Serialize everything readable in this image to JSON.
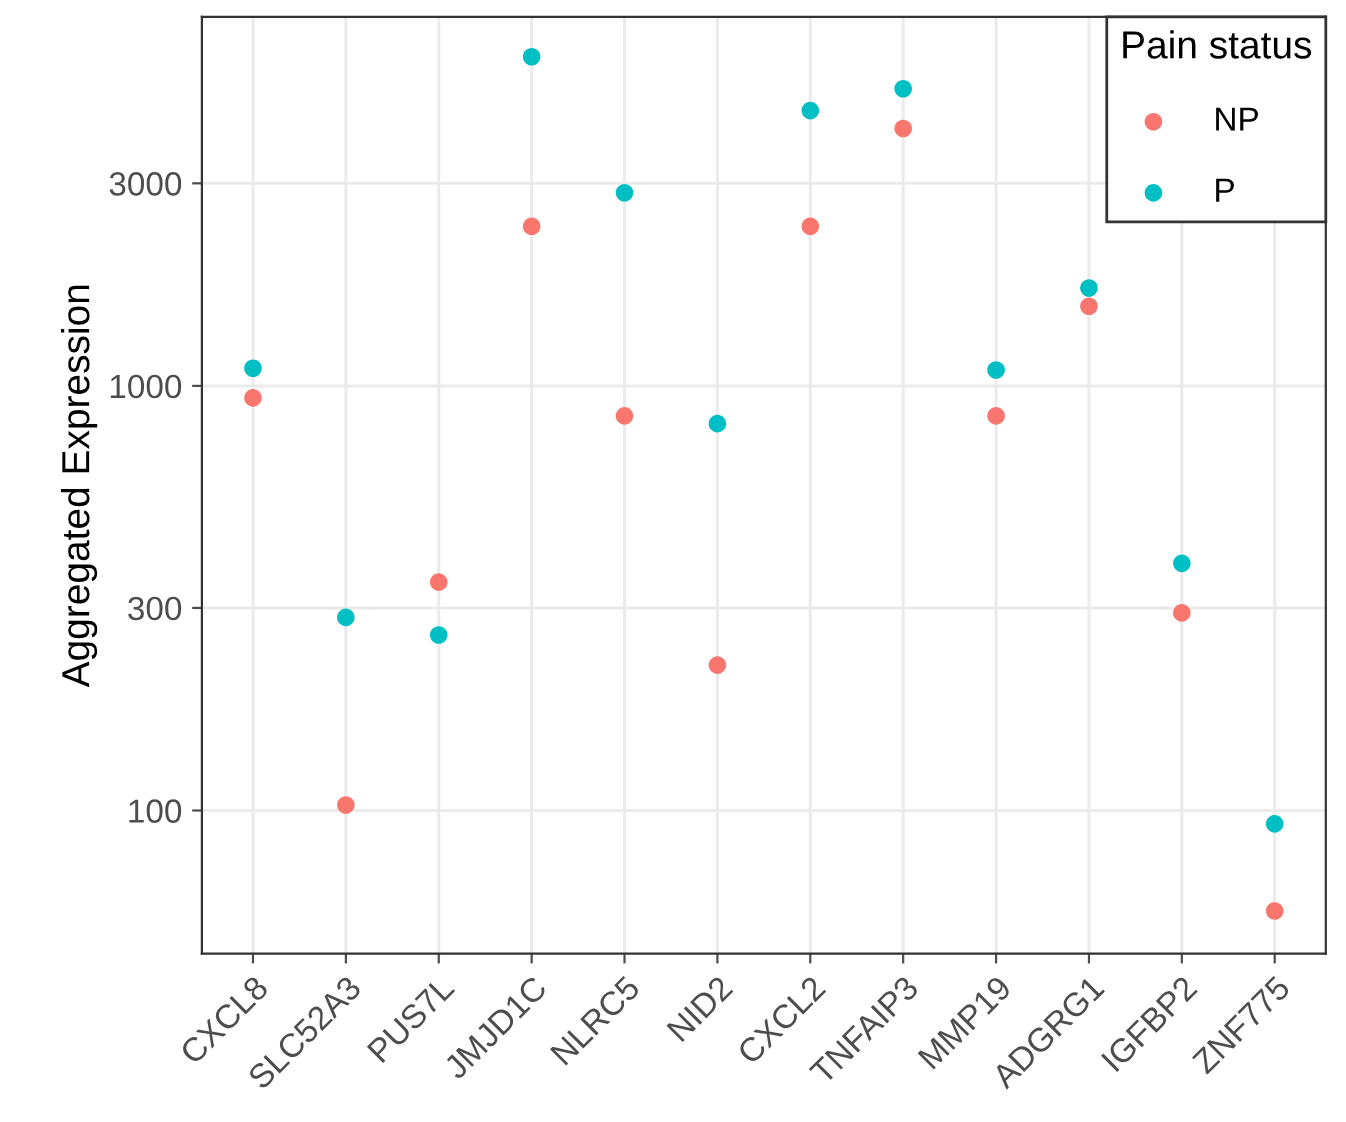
{
  "chart_data": {
    "type": "scatter",
    "ylabel": "Aggregated Expression",
    "legend_title": "Pain status",
    "categories": [
      "CXCL8",
      "SLC52A3",
      "PUS7L",
      "JMJD1C",
      "NLRC5",
      "NID2",
      "CXCL2",
      "TNFAIP3",
      "MMP19",
      "ADGRG1",
      "IGFBP2",
      "ZNF775"
    ],
    "series": [
      {
        "name": "NP",
        "color": "#f8766d",
        "values": [
          937,
          103,
          345,
          2375,
          850,
          220,
          2375,
          4040,
          850,
          1540,
          292,
          58
        ]
      },
      {
        "name": "P",
        "color": "#00bfc4",
        "values": [
          1100,
          285,
          259,
          5960,
          2850,
          815,
          4450,
          5010,
          1090,
          1700,
          382,
          93
        ]
      }
    ],
    "log": "y",
    "ylim": [
      46,
      7400
    ],
    "yticks": [
      100,
      300,
      1000,
      3000
    ],
    "grid": true,
    "legend": "top right",
    "marker": "circle"
  }
}
